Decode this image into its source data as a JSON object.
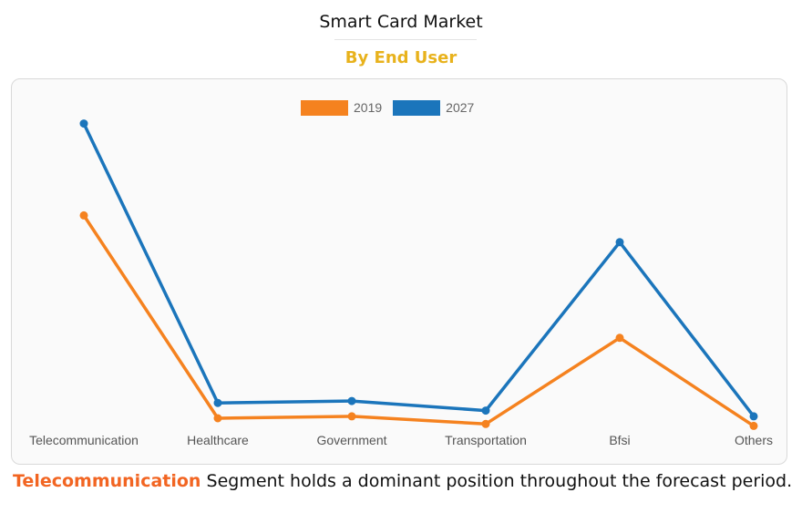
{
  "header": {
    "title": "Smart Card Market",
    "subtitle": "By End User"
  },
  "colors": {
    "subtitle": "#e8b21c",
    "series_2019": "#f5821f",
    "series_2027": "#1b75bb",
    "highlight": "#f26522"
  },
  "chart_data": {
    "type": "line",
    "categories": [
      "Telecommunication",
      "Healthcare",
      "Government",
      "Transportation",
      "Bfsi",
      "Others"
    ],
    "series": [
      {
        "name": "2019",
        "values": [
          58,
          5,
          5.5,
          3.5,
          26,
          3
        ]
      },
      {
        "name": "2027",
        "values": [
          82,
          9,
          9.5,
          7,
          51,
          5.5
        ]
      }
    ],
    "title": "",
    "xlabel": "",
    "ylabel": "",
    "ylim": [
      0,
      90
    ],
    "y_axis_visible": false,
    "grid": false,
    "legend_position": "top-center"
  },
  "footer": {
    "highlight": "Telecommunication",
    "text": " Segment holds a dominant position throughout the forecast period."
  }
}
